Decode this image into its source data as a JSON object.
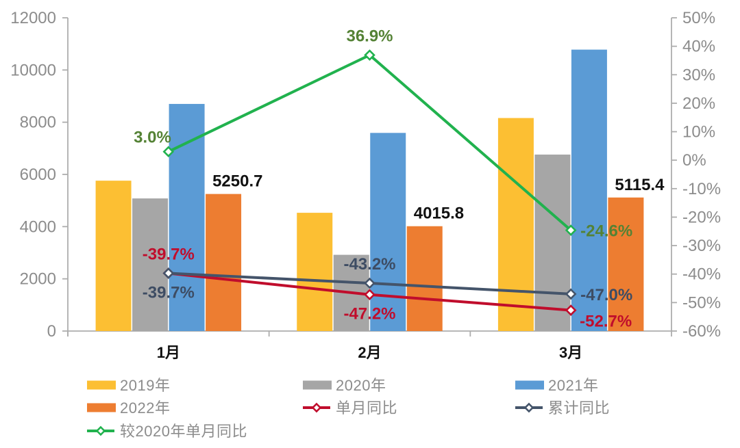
{
  "chart_data": {
    "type": "combo-bar-line",
    "categories": [
      "1月",
      "2月",
      "3月"
    ],
    "bar_series": [
      {
        "name": "2019年",
        "color": "#FCBF33",
        "values": [
          5760,
          4530,
          8160
        ]
      },
      {
        "name": "2020年",
        "color": "#A6A6A6",
        "values": [
          5080,
          2920,
          6760
        ]
      },
      {
        "name": "2021年",
        "color": "#5B9BD5",
        "values": [
          8700,
          7590,
          10780
        ]
      },
      {
        "name": "2022年",
        "color": "#ED7D31",
        "values": [
          5250.7,
          4015.8,
          5115.4
        ],
        "data_labels": [
          "5250.7",
          "4015.8",
          "5115.4"
        ]
      }
    ],
    "line_series": [
      {
        "name": "单月同比",
        "axis": "right",
        "color": "#C00D2C",
        "label_color": "#C00D2C",
        "values_pct": [
          -39.7,
          -47.2,
          -52.7
        ],
        "labels": [
          "-39.7%",
          "-47.2%",
          "-52.7%"
        ],
        "label_placements": [
          "above",
          "below",
          "below-right"
        ]
      },
      {
        "name": "累计同比",
        "axis": "right",
        "color": "#44546A",
        "label_color": "#3D4C63",
        "values_pct": [
          -39.7,
          -43.2,
          -47.0
        ],
        "labels": [
          "-39.7%",
          "-43.2%",
          "-47.0%"
        ],
        "label_placements": [
          "below",
          "above",
          "right"
        ]
      },
      {
        "name": "较2020年单月同比",
        "axis": "right",
        "color": "#21B24E",
        "label_color": "#548235",
        "values_pct": [
          3.0,
          36.9,
          -24.6
        ],
        "labels": [
          "3.0%",
          "36.9%",
          "-24.6%"
        ],
        "label_placements": [
          "above-left",
          "above",
          "right"
        ]
      }
    ],
    "left_axis": {
      "min": 0,
      "max": 12000,
      "tick_step": 2000,
      "tick_labels": [
        "0",
        "2000",
        "4000",
        "6000",
        "8000",
        "10000",
        "12000"
      ]
    },
    "right_axis": {
      "min": -60,
      "max": 50,
      "tick_step": 10,
      "tick_labels": [
        "-60%",
        "-50%",
        "-40%",
        "-30%",
        "-20%",
        "-10%",
        "0%",
        "10%",
        "20%",
        "30%",
        "40%",
        "50%"
      ]
    },
    "grid": false,
    "legend_position": "bottom-left",
    "legend_rows": [
      [
        {
          "label": "2019年",
          "swatch": "bar",
          "color": "#FCBF33"
        },
        {
          "label": "2020年",
          "swatch": "bar",
          "color": "#A6A6A6"
        },
        {
          "label": "2021年",
          "swatch": "bar",
          "color": "#5B9BD5"
        }
      ],
      [
        {
          "label": "2022年",
          "swatch": "bar",
          "color": "#ED7D31"
        },
        {
          "label": "单月同比",
          "swatch": "line",
          "color": "#C00D2C"
        },
        {
          "label": "累计同比",
          "swatch": "line",
          "color": "#44546A"
        }
      ],
      [
        {
          "label": "较2020年单月同比",
          "swatch": "line",
          "color": "#21B24E"
        }
      ]
    ]
  },
  "colors": {
    "background": "#FFFFFF",
    "axis_line": "#ADADAD",
    "axis_label": "#8C8C8C",
    "category_label": "#111111",
    "data_label": "#111111",
    "legend_text": "#8C8C8C"
  }
}
